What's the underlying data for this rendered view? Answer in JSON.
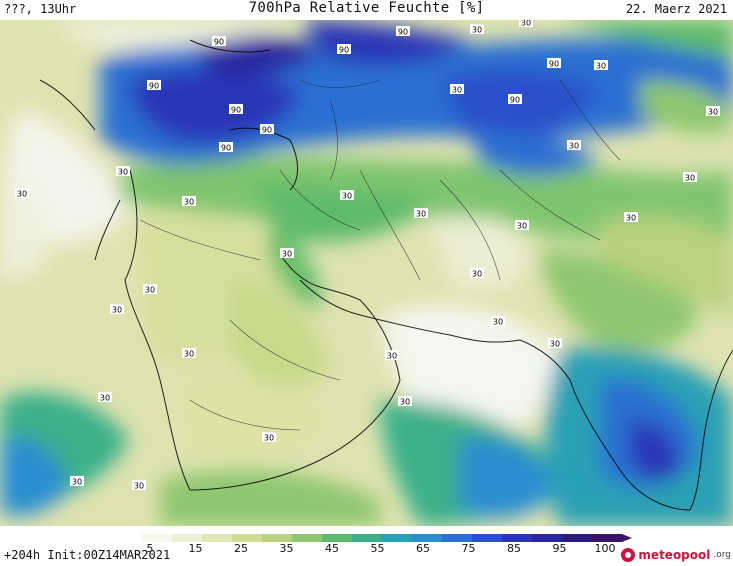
{
  "header": {
    "left": "???, 13Uhr",
    "title": "700hPa Relative Feuchte [%]",
    "date": "22. Maerz 2021"
  },
  "footer": {
    "init": "+204h Init:00Z14MAR2021",
    "brand_name": "meteopool",
    "brand_tld": ".org"
  },
  "colorbar": {
    "ticks": [
      "5",
      "15",
      "25",
      "35",
      "45",
      "55",
      "65",
      "75",
      "85",
      "95",
      "100"
    ],
    "colors": [
      "#ffffff",
      "#f6f6ec",
      "#ecefd6",
      "#e1e6b5",
      "#d2dc94",
      "#b9d27f",
      "#8fc770",
      "#5dbb6b",
      "#3bb08a",
      "#2aa0b5",
      "#2a8ed0",
      "#2a6fd2",
      "#2a4fc8",
      "#2a36b6",
      "#2a26a0",
      "#2a1d7e",
      "#3a1468"
    ]
  },
  "map_labels": [
    {
      "text": "90"
    },
    {
      "text": "90"
    },
    {
      "text": "90"
    },
    {
      "text": "90"
    },
    {
      "text": "90"
    },
    {
      "text": "90"
    },
    {
      "text": "90"
    },
    {
      "text": "90"
    },
    {
      "text": "90"
    },
    {
      "text": "30"
    },
    {
      "text": "30"
    },
    {
      "text": "30"
    },
    {
      "text": "30"
    },
    {
      "text": "30"
    },
    {
      "text": "30"
    },
    {
      "text": "30"
    },
    {
      "text": "30"
    },
    {
      "text": "30"
    },
    {
      "text": "30"
    },
    {
      "text": "30"
    },
    {
      "text": "30"
    },
    {
      "text": "30"
    },
    {
      "text": "30"
    },
    {
      "text": "30"
    },
    {
      "text": "30"
    },
    {
      "text": "30"
    },
    {
      "text": "30"
    },
    {
      "text": "30"
    },
    {
      "text": "30"
    },
    {
      "text": "30"
    },
    {
      "text": "30"
    },
    {
      "text": "30"
    },
    {
      "text": "30"
    },
    {
      "text": "30"
    },
    {
      "text": "30"
    },
    {
      "text": "30"
    }
  ]
}
